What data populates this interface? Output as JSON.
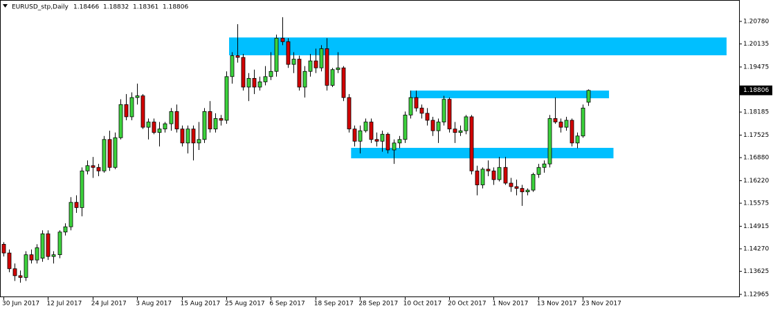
{
  "chart_data": {
    "type": "candlestick",
    "title": "EURUSD_stp,Daily",
    "categories": [
      "30 Jun 2017",
      null,
      null,
      null,
      null,
      null,
      null,
      null,
      "12 Jul 2017",
      null,
      null,
      null,
      null,
      null,
      null,
      null,
      "24 Jul 2017",
      null,
      null,
      null,
      null,
      null,
      null,
      null,
      "3 Aug 2017",
      null,
      null,
      null,
      null,
      null,
      null,
      null,
      "15 Aug 2017",
      null,
      null,
      null,
      null,
      null,
      null,
      null,
      "25 Aug 2017",
      null,
      null,
      null,
      null,
      null,
      null,
      null,
      "6 Sep 2017",
      null,
      null,
      null,
      null,
      null,
      null,
      null,
      "18 Sep 2017",
      null,
      null,
      null,
      null,
      null,
      null,
      null,
      "28 Sep 2017",
      null,
      null,
      null,
      null,
      null,
      null,
      null,
      "10 Oct 2017",
      null,
      null,
      null,
      null,
      null,
      null,
      null,
      "20 Oct 2017",
      null,
      null,
      null,
      null,
      null,
      null,
      null,
      "1 Nov 2017",
      null,
      null,
      null,
      null,
      null,
      null,
      null,
      "13 Nov 2017",
      null,
      null,
      null,
      null,
      null,
      null,
      null,
      "23 Nov 2017",
      null
    ],
    "open": [
      1.144,
      1.1415,
      1.137,
      1.135,
      1.1345,
      1.141,
      1.1395,
      1.14,
      1.147,
      1.1405,
      1.141,
      1.1475,
      1.149,
      1.156,
      1.1545,
      1.165,
      1.1665,
      1.166,
      1.165,
      1.174,
      1.166,
      1.1745,
      1.184,
      1.1805,
      1.186,
      1.1865,
      1.1775,
      1.179,
      1.176,
      1.177,
      1.1785,
      1.182,
      1.177,
      1.173,
      1.177,
      1.173,
      1.174,
      1.182,
      1.177,
      1.18,
      1.1795,
      1.192,
      1.198,
      1.1975,
      1.189,
      1.1915,
      1.189,
      1.1905,
      1.192,
      1.1935,
      1.203,
      1.202,
      1.1955,
      1.197,
      1.189,
      1.1935,
      1.1965,
      1.1945,
      1.2,
      1.1895,
      1.194,
      1.1945,
      1.186,
      1.177,
      1.1735,
      1.1765,
      1.179,
      1.174,
      1.1735,
      1.1755,
      1.171,
      1.173,
      1.174,
      1.181,
      1.186,
      1.183,
      1.1815,
      1.1795,
      1.1765,
      1.179,
      1.1855,
      1.177,
      1.176,
      1.1765,
      1.1805,
      1.165,
      1.161,
      1.1655,
      1.165,
      1.1625,
      1.166,
      1.1615,
      1.1605,
      1.16,
      1.159,
      1.1595,
      1.164,
      1.166,
      1.167,
      1.18,
      1.179,
      1.1775,
      1.1795,
      1.173,
      1.175,
      1.18466
    ],
    "high": [
      1.1446,
      1.1425,
      1.1385,
      1.1365,
      1.142,
      1.1425,
      1.144,
      1.148,
      1.148,
      1.142,
      1.148,
      1.15,
      1.1575,
      1.158,
      1.166,
      1.168,
      1.169,
      1.167,
      1.175,
      1.1765,
      1.176,
      1.1855,
      1.187,
      1.1875,
      1.19,
      1.187,
      1.18,
      1.18,
      1.179,
      1.179,
      1.183,
      1.184,
      1.178,
      1.178,
      1.178,
      1.179,
      1.183,
      1.185,
      1.1815,
      1.181,
      1.1935,
      1.199,
      1.207,
      1.1985,
      1.193,
      1.194,
      1.192,
      1.195,
      1.199,
      1.204,
      1.209,
      1.203,
      1.199,
      1.198,
      1.195,
      1.1985,
      1.2,
      1.201,
      1.203,
      1.1945,
      1.199,
      1.195,
      1.187,
      1.178,
      1.178,
      1.18,
      1.18,
      1.176,
      1.1765,
      1.176,
      1.174,
      1.175,
      1.182,
      1.188,
      1.188,
      1.184,
      1.183,
      1.1805,
      1.18,
      1.1865,
      1.186,
      1.179,
      1.178,
      1.181,
      1.181,
      1.1665,
      1.166,
      1.168,
      1.166,
      1.169,
      1.169,
      1.163,
      1.1625,
      1.161,
      1.16,
      1.1645,
      1.167,
      1.168,
      1.181,
      1.186,
      1.18,
      1.1805,
      1.18,
      1.176,
      1.184,
      1.18832
    ],
    "low": [
      1.1405,
      1.136,
      1.1335,
      1.133,
      1.1335,
      1.1385,
      1.1385,
      1.139,
      1.1395,
      1.1385,
      1.14,
      1.1465,
      1.148,
      1.153,
      1.152,
      1.164,
      1.163,
      1.1635,
      1.1645,
      1.165,
      1.1655,
      1.174,
      1.1795,
      1.1795,
      1.184,
      1.177,
      1.174,
      1.1755,
      1.172,
      1.176,
      1.1765,
      1.176,
      1.172,
      1.17,
      1.168,
      1.171,
      1.173,
      1.176,
      1.176,
      1.178,
      1.1785,
      1.19,
      1.196,
      1.188,
      1.185,
      1.187,
      1.188,
      1.1895,
      1.191,
      1.192,
      1.201,
      1.1945,
      1.193,
      1.188,
      1.186,
      1.192,
      1.193,
      1.1935,
      1.188,
      1.189,
      1.193,
      1.185,
      1.176,
      1.172,
      1.17,
      1.176,
      1.173,
      1.172,
      1.1705,
      1.17,
      1.167,
      1.1715,
      1.173,
      1.18,
      1.182,
      1.18,
      1.178,
      1.175,
      1.173,
      1.178,
      1.176,
      1.173,
      1.175,
      1.1755,
      1.164,
      1.158,
      1.16,
      1.1635,
      1.161,
      1.162,
      1.161,
      1.159,
      1.158,
      1.155,
      1.158,
      1.159,
      1.163,
      1.1645,
      1.166,
      1.1785,
      1.176,
      1.1765,
      1.172,
      1.1715,
      1.1745,
      1.18361
    ],
    "close": [
      1.1415,
      1.137,
      1.135,
      1.1345,
      1.141,
      1.1395,
      1.143,
      1.147,
      1.1405,
      1.141,
      1.1475,
      1.149,
      1.156,
      1.1545,
      1.165,
      1.1665,
      1.166,
      1.165,
      1.174,
      1.166,
      1.1745,
      1.184,
      1.1805,
      1.186,
      1.1865,
      1.1775,
      1.179,
      1.176,
      1.177,
      1.1785,
      1.182,
      1.177,
      1.173,
      1.177,
      1.173,
      1.174,
      1.182,
      1.177,
      1.18,
      1.1795,
      1.192,
      1.198,
      1.1975,
      1.189,
      1.1915,
      1.189,
      1.1905,
      1.192,
      1.1935,
      1.203,
      1.202,
      1.1955,
      1.197,
      1.189,
      1.1935,
      1.1965,
      1.1945,
      1.2,
      1.1895,
      1.194,
      1.1945,
      1.186,
      1.177,
      1.1735,
      1.1765,
      1.179,
      1.174,
      1.1735,
      1.1755,
      1.171,
      1.173,
      1.174,
      1.181,
      1.186,
      1.183,
      1.1815,
      1.1795,
      1.1765,
      1.179,
      1.1855,
      1.177,
      1.176,
      1.1765,
      1.1805,
      1.165,
      1.161,
      1.1655,
      1.165,
      1.1625,
      1.166,
      1.1615,
      1.1605,
      1.16,
      1.159,
      1.1595,
      1.164,
      1.166,
      1.167,
      1.18,
      1.179,
      1.1775,
      1.1795,
      1.173,
      1.175,
      1.183,
      1.18806
    ],
    "up_color": "#3cd23c",
    "down_color": "#d20000",
    "zone_color": "#00bfff",
    "zones": [
      {
        "top": 1.2032,
        "bottom": 1.1981,
        "start": 40.5,
        "end": 129.8
      },
      {
        "top": 1.188,
        "bottom": 1.1858,
        "start": 73,
        "end": 108.7
      },
      {
        "top": 1.1716,
        "bottom": 1.1686,
        "start": 62.4,
        "end": 109.5
      }
    ],
    "ylim": [
      1.12885,
      1.21294
    ],
    "yticks": [
      {
        "value": 1.2078,
        "label": "1.20780"
      },
      1.20135,
      1.19475,
      1.18185,
      1.17525,
      {
        "value": 1.1688,
        "label": "1.16880"
      },
      {
        "value": 1.1622,
        "label": "1.16220"
      },
      1.15575,
      1.14915,
      {
        "value": 1.1427,
        "label": "1.14270"
      },
      1.13625,
      1.12965
    ]
  }
}
